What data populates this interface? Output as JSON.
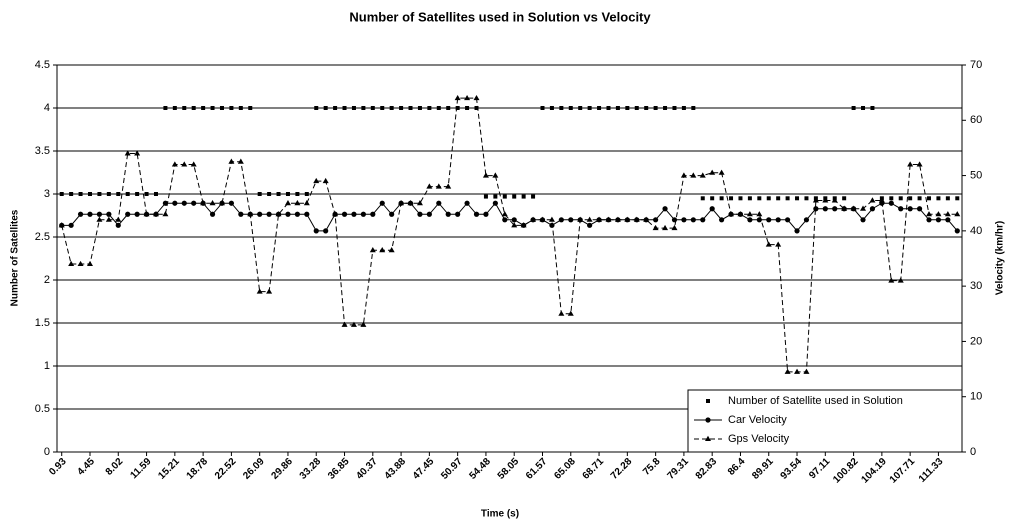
{
  "chart_data": {
    "type": "line",
    "title": "Number of Satellites used in Solution vs Velocity",
    "x_label": "Time (s)",
    "y_label": "Number of Satellites",
    "y2_label": "Velocity (km/hr)",
    "categories": [
      "0.93",
      null,
      null,
      "4.45",
      null,
      null,
      "8.02",
      null,
      null,
      "11.59",
      null,
      null,
      "15.21",
      null,
      null,
      "18.78",
      null,
      null,
      "22.52",
      null,
      null,
      "26.09",
      null,
      null,
      "29.86",
      null,
      null,
      "33.28",
      null,
      null,
      "36.85",
      null,
      null,
      "40.37",
      null,
      null,
      "43.88",
      null,
      null,
      "47.45",
      null,
      null,
      "50.97",
      null,
      null,
      "54.48",
      null,
      null,
      "58.05",
      null,
      null,
      "61.57",
      null,
      null,
      "65.08",
      null,
      null,
      "68.71",
      null,
      null,
      "72.28",
      null,
      null,
      "75.8",
      null,
      null,
      "79.31",
      null,
      null,
      "82.83",
      null,
      null,
      "86.4",
      null,
      null,
      "89.91",
      null,
      null,
      "93.54",
      null,
      null,
      "97.11",
      null,
      null,
      "100.82",
      null,
      null,
      "104.19",
      null,
      null,
      "107.71",
      null,
      null,
      "111.33",
      null,
      null
    ],
    "series": [
      {
        "name": "Number of Satellite used in Solution",
        "color": "#000000",
        "marker": "square",
        "line": false,
        "values": [
          3,
          3,
          3,
          3,
          3,
          3,
          3,
          3,
          3,
          3,
          3,
          4,
          4,
          4,
          4,
          4,
          4,
          4,
          4,
          4,
          4,
          3,
          3,
          3,
          3,
          3,
          3,
          4,
          4,
          4,
          4,
          4,
          4,
          4,
          4,
          4,
          4,
          4,
          4,
          4,
          4,
          4,
          4,
          4,
          4,
          2.97,
          2.97,
          2.97,
          2.97,
          2.97,
          2.97,
          4,
          4,
          4,
          4,
          4,
          4,
          4,
          4,
          4,
          4,
          4,
          4,
          4,
          4,
          4,
          4,
          4,
          2.95,
          2.95,
          2.95,
          2.95,
          2.95,
          2.95,
          2.95,
          2.95,
          2.95,
          2.95,
          2.95,
          2.95,
          2.95,
          2.95,
          2.95,
          2.95,
          4,
          4,
          4,
          2.95,
          2.95,
          2.95,
          2.95,
          2.95,
          2.95,
          2.95,
          2.95,
          2.95
        ]
      },
      {
        "name": "Car Velocity",
        "color": "#000000",
        "marker": "circle",
        "line": "solid",
        "axis": "y2",
        "values": [
          41,
          41,
          43,
          43,
          43,
          43,
          41,
          43,
          43,
          43,
          43,
          45,
          45,
          45,
          45,
          45,
          43,
          45,
          45,
          43,
          43,
          43,
          43,
          43,
          43,
          43,
          43,
          40,
          40,
          43,
          43,
          43,
          43,
          43,
          45,
          43,
          45,
          45,
          43,
          43,
          45,
          43,
          43,
          45,
          43,
          43,
          45,
          42,
          42,
          41,
          42,
          42,
          41,
          42,
          42,
          42,
          41,
          42,
          42,
          42,
          42,
          42,
          42,
          42,
          44,
          42,
          42,
          42,
          42,
          44,
          42,
          43,
          43,
          42,
          42,
          42,
          42,
          42,
          40,
          42,
          44,
          44,
          44,
          44,
          44,
          42,
          44,
          45,
          45,
          44,
          44,
          44,
          42,
          42,
          42,
          40
        ]
      },
      {
        "name": "Gps Velocity",
        "color": "#000000",
        "marker": "triangle",
        "line": "dashed",
        "axis": "y2",
        "values": [
          41,
          34,
          34,
          34,
          42,
          42,
          42,
          54,
          54,
          43,
          43,
          43,
          52,
          52,
          52,
          45,
          45,
          45,
          52.5,
          52.5,
          43,
          29,
          29,
          43,
          45,
          45,
          45,
          49,
          49,
          43,
          23,
          23,
          23,
          36.5,
          36.5,
          36.5,
          45,
          45,
          45,
          48,
          48,
          48,
          64,
          64,
          64,
          50,
          50,
          43,
          41,
          41,
          42,
          42,
          42,
          25,
          25,
          42,
          42,
          42,
          42,
          42,
          42,
          42,
          42,
          40.5,
          40.5,
          40.5,
          50,
          50,
          50,
          50.5,
          50.5,
          43,
          43,
          43,
          43,
          37.5,
          37.5,
          14.5,
          14.5,
          14.5,
          45.5,
          45.5,
          45.5,
          44,
          44,
          44,
          45.5,
          45.5,
          31,
          31,
          52,
          52,
          43,
          43,
          43,
          43
        ]
      }
    ],
    "ylim": [
      0,
      4.5
    ],
    "yticks": [
      0,
      0.5,
      1,
      1.5,
      2,
      2.5,
      3,
      3.5,
      4,
      4.5
    ],
    "y2lim": [
      0,
      70
    ],
    "y2ticks": [
      0,
      10,
      20,
      30,
      40,
      50,
      60,
      70
    ],
    "grid": true,
    "legend": "lower right"
  }
}
